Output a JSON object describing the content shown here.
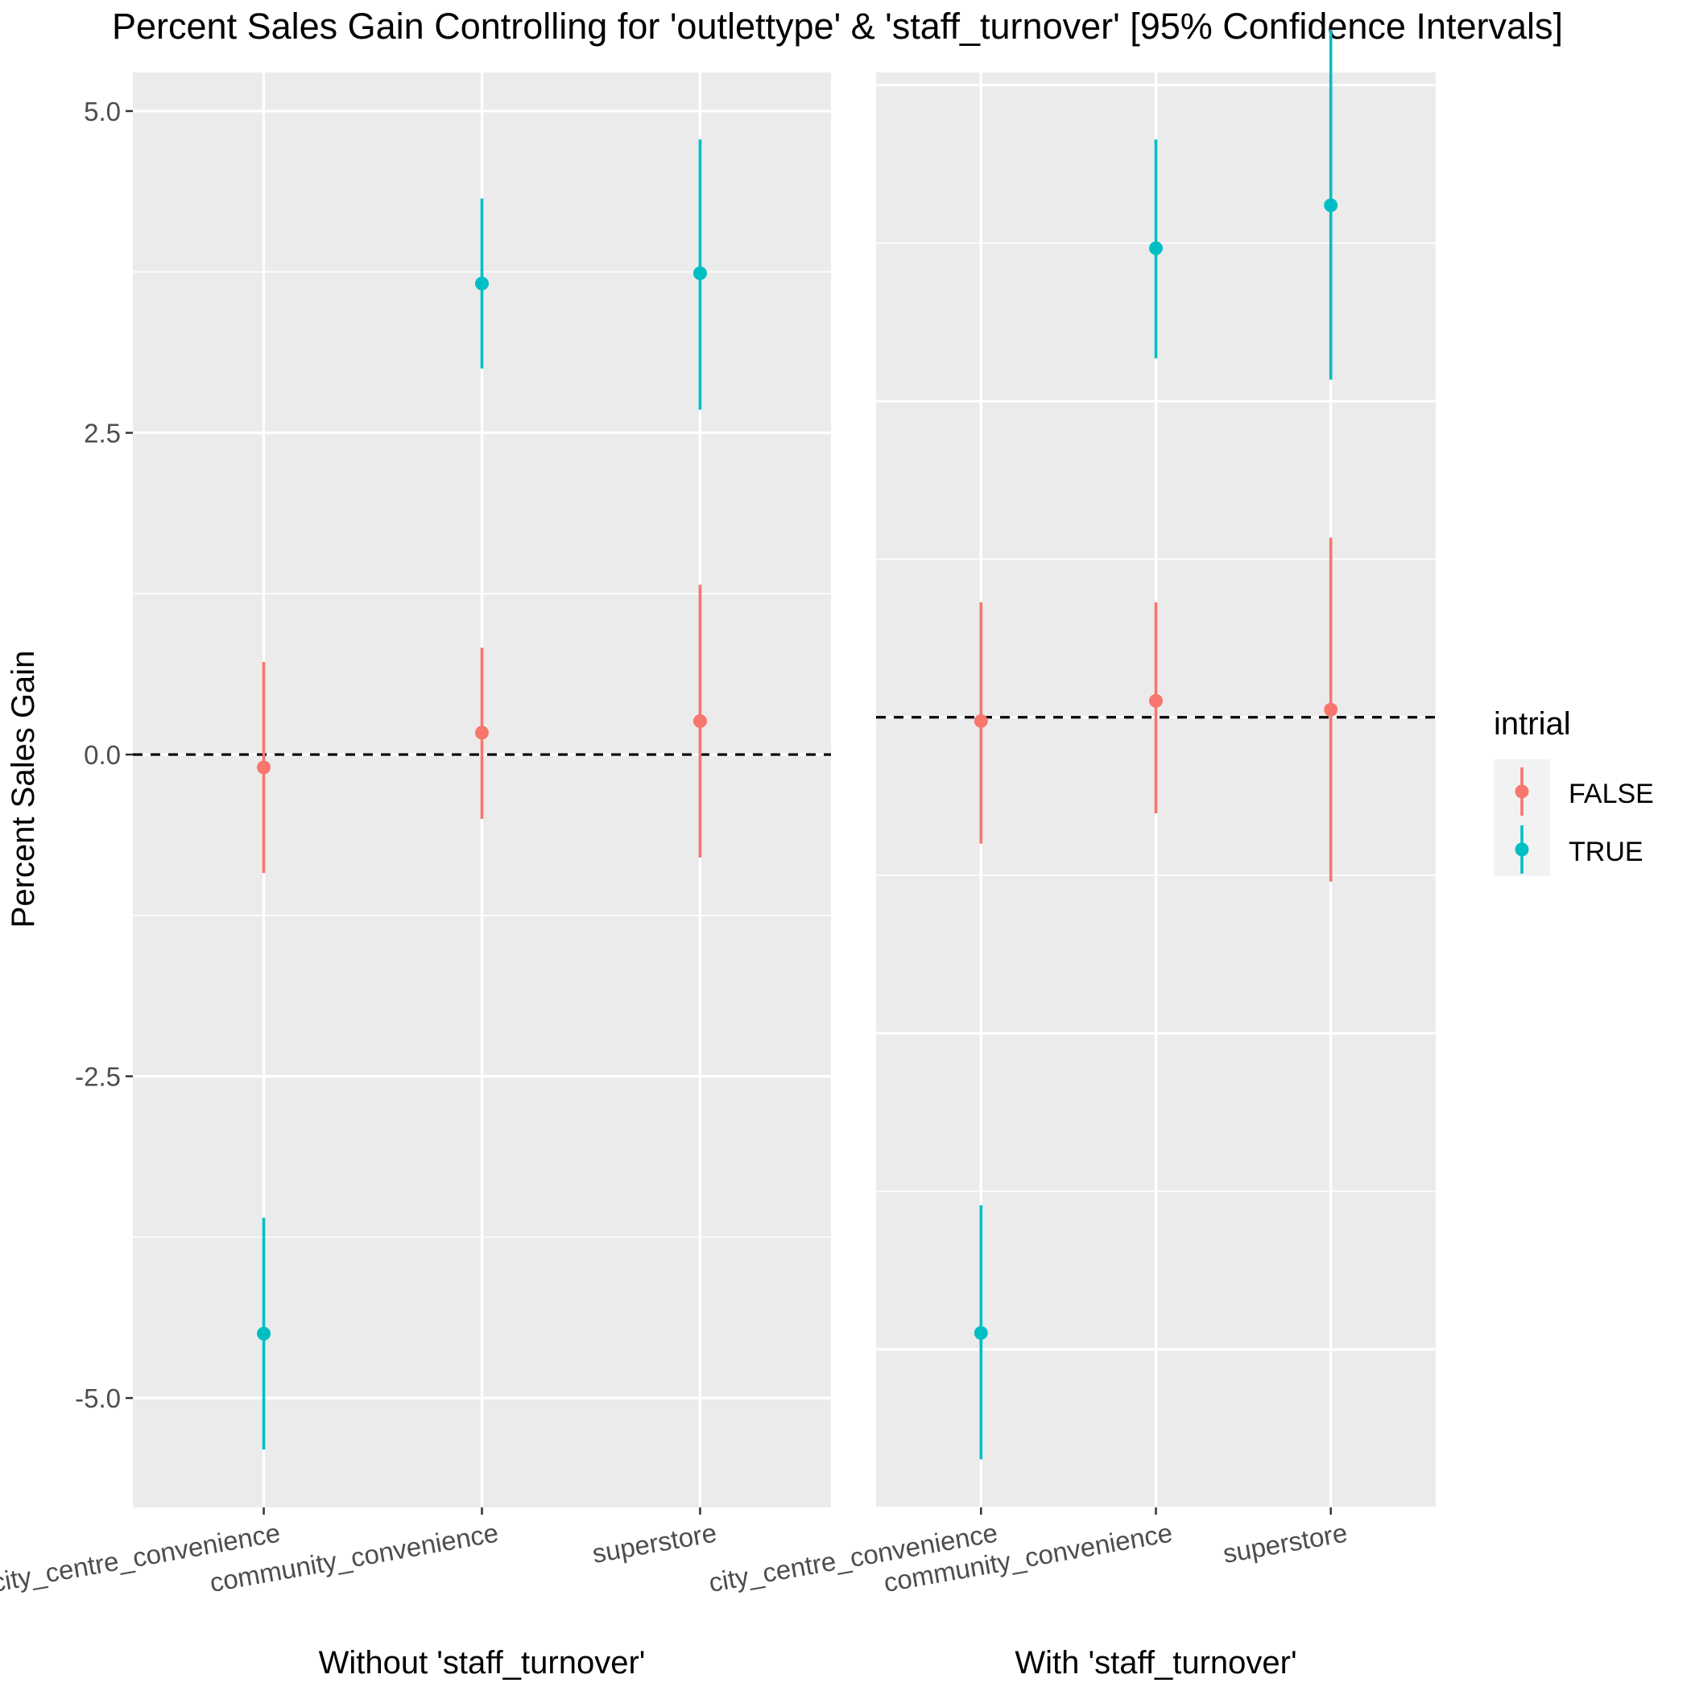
{
  "title": "Percent Sales Gain Controlling for 'outlettype' & 'staff_turnover' [95% Confidence Intervals]",
  "ylabel": "Percent Sales Gain",
  "legend": {
    "title": "intrial",
    "placement": "right",
    "entries": [
      {
        "label": "FALSE",
        "color": "#F8766D"
      },
      {
        "label": "TRUE",
        "color": "#00BFC4"
      }
    ]
  },
  "chart_data": [
    {
      "type": "errorbar",
      "xlabel": "Without 'staff_turnover'",
      "categories": [
        "city_centre_convenience",
        "community_convenience",
        "superstore"
      ],
      "ylim": [
        -5.85,
        5.3
      ],
      "yticks": [
        "5.0",
        "2.5",
        "0.0",
        "-2.5",
        "-5.0"
      ],
      "yticks_shown": true,
      "reference_line": 0.0,
      "series": [
        {
          "name": "FALSE",
          "color": "#F8766D",
          "points": [
            {
              "category": "city_centre_convenience",
              "y": -0.1,
              "low": -0.92,
              "high": 0.72
            },
            {
              "category": "community_convenience",
              "y": 0.17,
              "low": -0.5,
              "high": 0.83
            },
            {
              "category": "superstore",
              "y": 0.26,
              "low": -0.8,
              "high": 1.32
            }
          ]
        },
        {
          "name": "TRUE",
          "color": "#00BFC4",
          "points": [
            {
              "category": "city_centre_convenience",
              "y": -4.5,
              "low": -5.4,
              "high": -3.6
            },
            {
              "category": "community_convenience",
              "y": 3.66,
              "low": 3.0,
              "high": 4.32
            },
            {
              "category": "superstore",
              "y": 3.74,
              "low": 2.68,
              "high": 4.78
            }
          ]
        }
      ]
    },
    {
      "type": "errorbar",
      "xlabel": "With 'staff_turnover'",
      "categories": [
        "city_centre_convenience",
        "community_convenience",
        "superstore"
      ],
      "ylim": [
        -6.25,
        5.1
      ],
      "yticks": [],
      "yticks_shown": false,
      "reference_line": 0.0,
      "series": [
        {
          "name": "FALSE",
          "color": "#F8766D",
          "points": [
            {
              "category": "city_centre_convenience",
              "y": -0.03,
              "low": -1.0,
              "high": 0.91
            },
            {
              "category": "community_convenience",
              "y": 0.13,
              "low": -0.76,
              "high": 0.91
            },
            {
              "category": "superstore",
              "y": 0.06,
              "low": -1.3,
              "high": 1.42
            }
          ]
        },
        {
          "name": "TRUE",
          "color": "#00BFC4",
          "points": [
            {
              "category": "city_centre_convenience",
              "y": -4.87,
              "low": -5.87,
              "high": -3.86
            },
            {
              "category": "community_convenience",
              "y": 3.71,
              "low": 2.84,
              "high": 4.57
            },
            {
              "category": "superstore",
              "y": 4.05,
              "low": 2.67,
              "high": 5.44
            }
          ]
        }
      ]
    }
  ]
}
